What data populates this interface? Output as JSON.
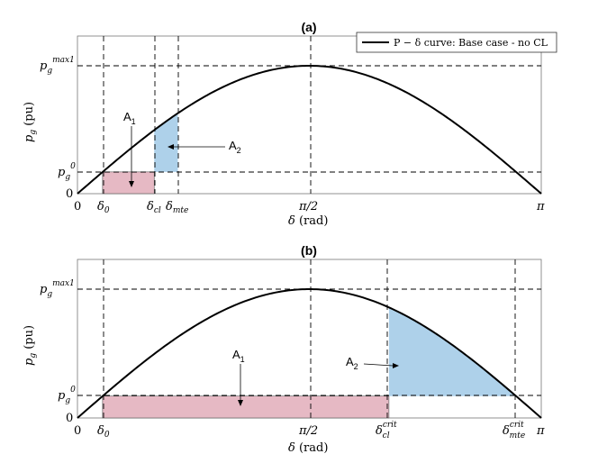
{
  "chart_data": [
    {
      "type": "line",
      "title": "(a)",
      "xlabel": "δ (rad)",
      "ylabel": "p_g (pu)",
      "xlim": [
        0,
        3.1416
      ],
      "ylim": [
        0,
        1.0
      ],
      "grid": false,
      "legend_placement": "top-right",
      "legend": [
        "P − δ curve: Base case - no CL"
      ],
      "curve": {
        "function": "pmax*sin(delta)",
        "pmax": 1.0
      },
      "xticks": [
        {
          "value": 0,
          "label": "0"
        },
        {
          "value": 0.17,
          "label": "δ0"
        },
        {
          "value": 0.52,
          "label": "δcl"
        },
        {
          "value": 0.68,
          "label": "δmte"
        },
        {
          "value": 1.5708,
          "label": "π/2"
        },
        {
          "value": 3.1416,
          "label": "π"
        }
      ],
      "yticks": [
        {
          "value": 0,
          "label": "0"
        },
        {
          "value": 0.17,
          "label": "p_g^0"
        },
        {
          "value": 1.0,
          "label": "p_g^max1"
        }
      ],
      "regions": [
        {
          "name": "A1",
          "type": "accelerating",
          "delta_from": 0.17,
          "delta_to": 0.52,
          "color": "#e6b9c4"
        },
        {
          "name": "A2",
          "type": "decelerating",
          "delta_from": 0.52,
          "delta_to": 0.68,
          "color": "#aed1ea"
        }
      ],
      "annotations": [
        "A1",
        "A2"
      ]
    },
    {
      "type": "line",
      "title": "(b)",
      "xlabel": "δ (rad)",
      "ylabel": "p_g (pu)",
      "xlim": [
        0,
        3.1416
      ],
      "ylim": [
        0,
        1.0
      ],
      "grid": false,
      "curve": {
        "function": "pmax*sin(delta)",
        "pmax": 1.0
      },
      "xticks": [
        {
          "value": 0,
          "label": "0"
        },
        {
          "value": 0.17,
          "label": "δ0"
        },
        {
          "value": 1.5708,
          "label": "π/2"
        },
        {
          "value": 2.11,
          "label": "δcl^crit"
        },
        {
          "value": 2.97,
          "label": "δmte^crit"
        },
        {
          "value": 3.1416,
          "label": "π"
        }
      ],
      "yticks": [
        {
          "value": 0,
          "label": "0"
        },
        {
          "value": 0.17,
          "label": "p_g^0"
        },
        {
          "value": 1.0,
          "label": "p_g^max1"
        }
      ],
      "regions": [
        {
          "name": "A1",
          "type": "accelerating",
          "delta_from": 0.17,
          "delta_to": 2.11,
          "color": "#e6b9c4"
        },
        {
          "name": "A2",
          "type": "decelerating",
          "delta_from": 2.11,
          "delta_to": 2.97,
          "color": "#aed1ea"
        }
      ],
      "annotations": [
        "A1",
        "A2"
      ]
    }
  ]
}
